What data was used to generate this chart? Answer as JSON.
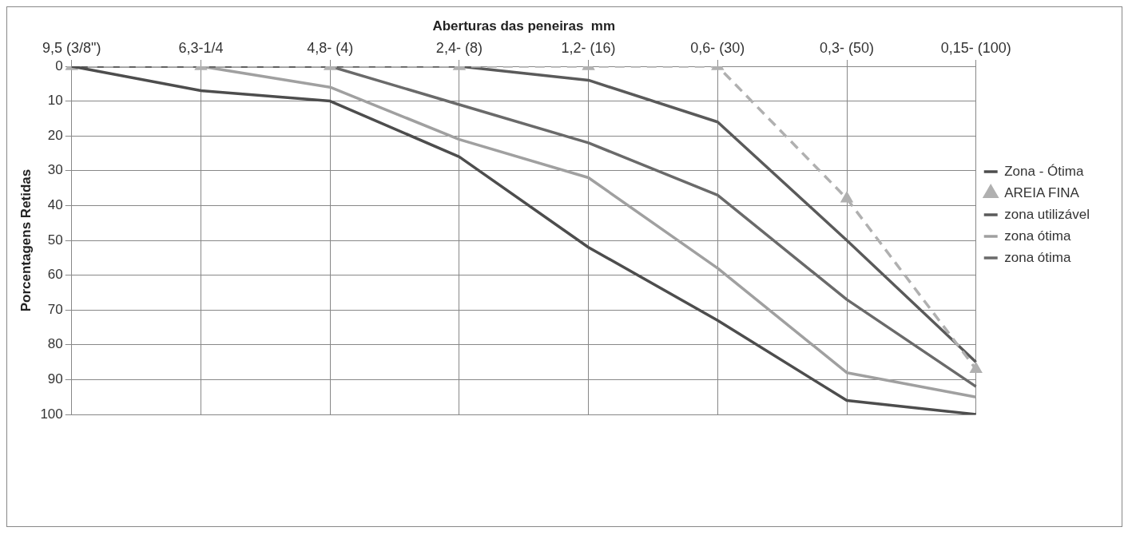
{
  "chart_data": {
    "type": "line",
    "xlabel": "Aberturas das peneiras  mm",
    "ylabel": "Porcentagens Retidas",
    "categories": [
      "9,5 (3/8\")",
      "6,3-1/4",
      "4,8- (4)",
      "2,4- (8)",
      "1,2- (16)",
      "0,6- (30)",
      "0,3- (50)",
      "0,15- (100)"
    ],
    "series": [
      {
        "name": "Zona - Ótima",
        "color": "#4d4d4d",
        "values": [
          0,
          7,
          10,
          26,
          52,
          73,
          96,
          100
        ]
      },
      {
        "name": "AREIA FINA",
        "color": "#b0b0b0",
        "marker": "triangle",
        "line_style": "dashed",
        "values": [
          0,
          0,
          0,
          0,
          0,
          0,
          38,
          87
        ]
      },
      {
        "name": "zona utilizável",
        "color": "#5a5a5a",
        "values": [
          0,
          0,
          0,
          0,
          4,
          16,
          50,
          85
        ]
      },
      {
        "name": "zona ótima",
        "color": "#a0a0a0",
        "values": [
          0,
          0,
          6,
          21,
          32,
          58,
          88,
          95
        ]
      },
      {
        "name": "zona ótima",
        "color": "#6a6a6a",
        "values": [
          0,
          0,
          0,
          11,
          22,
          37,
          67,
          92
        ]
      }
    ],
    "ylim": [
      100,
      0
    ],
    "yticks": [
      0,
      10,
      20,
      30,
      40,
      50,
      60,
      70,
      80,
      90,
      100
    ],
    "grid": true,
    "legend": "right",
    "marker": "none",
    "line_style": "solid"
  }
}
